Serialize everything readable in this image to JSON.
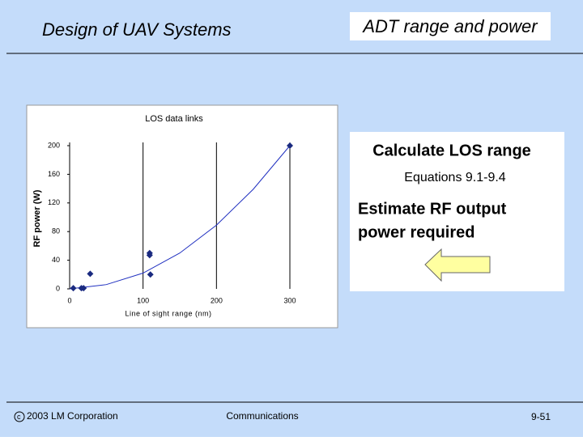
{
  "header": {
    "title": "Design of UAV Systems",
    "section": "ADT range and power"
  },
  "chart_data": {
    "type": "scatter",
    "title": "LOS data links",
    "x_label": "Line of sight range (nm)",
    "y_label": "RF power (W)",
    "series": [
      {
        "color": "#1a2a80",
        "x": [
          5,
          16,
          19,
          28,
          109,
          109,
          110,
          300
        ],
        "values": [
          1,
          1,
          1,
          21,
          50,
          47,
          20,
          200
        ]
      }
    ],
    "trendline": {
      "color": "#2030c0",
      "x": [
        0,
        50,
        100,
        150,
        200,
        250,
        300
      ],
      "values": [
        0,
        6,
        22,
        50,
        89,
        139,
        200
      ]
    },
    "xlim": [
      0,
      300
    ],
    "xticks": [
      0,
      100,
      200,
      300
    ],
    "ylim": [
      0,
      200
    ],
    "yticks": [
      0,
      40,
      80,
      120,
      160,
      200
    ],
    "grid": "x"
  },
  "notes": {
    "line1": "Calculate LOS range",
    "line2": "Equations 9.1-9.4",
    "line3": "Estimate RF output",
    "line4": "power required"
  },
  "footer": {
    "copyright": "2003 LM Corporation",
    "center": "Communications",
    "page": "9-51"
  }
}
